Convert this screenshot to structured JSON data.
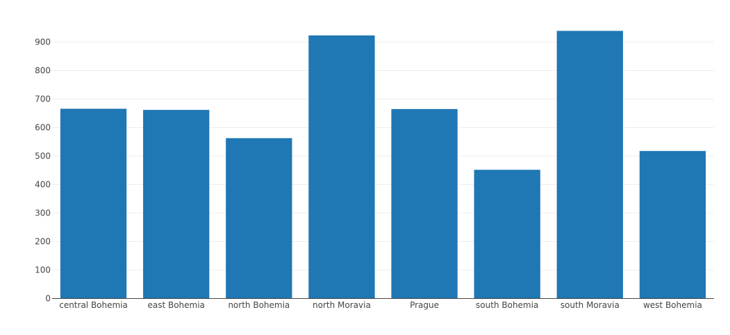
{
  "chart_data": {
    "type": "bar",
    "categories": [
      "central Bohemia",
      "east Bohemia",
      "north Bohemia",
      "north Moravia",
      "Prague",
      "south Bohemia",
      "south Moravia",
      "west Bohemia"
    ],
    "values": [
      664,
      660,
      561,
      921,
      663,
      450,
      937,
      516
    ],
    "ylim": [
      0,
      960
    ],
    "yticks": [
      0,
      100,
      200,
      300,
      400,
      500,
      600,
      700,
      800,
      900
    ],
    "grid": true,
    "bar_color": "#1f77b4",
    "grid_color": "#eeeeee",
    "text_color": "#444444"
  }
}
